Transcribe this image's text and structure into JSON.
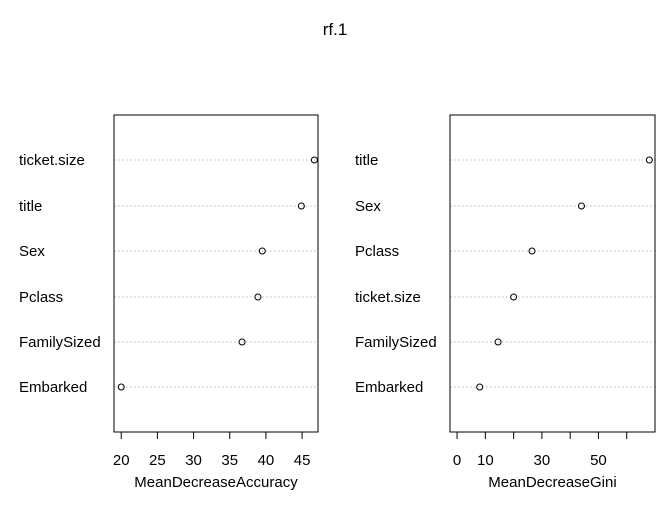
{
  "figure": {
    "title": "rf.1"
  },
  "chart_data": [
    {
      "type": "scatter",
      "plot": "dotchart",
      "xlabel": "MeanDecreaseAccuracy",
      "ylabel": "",
      "xlim": [
        19,
        47.2
      ],
      "xticks": [
        20,
        25,
        30,
        35,
        40,
        45
      ],
      "categories": [
        "ticket.size",
        "title",
        "Sex",
        "Pclass",
        "FamilySized",
        "Embarked"
      ],
      "values": [
        46.7,
        44.9,
        39.5,
        38.9,
        36.7,
        20.0
      ],
      "grid": "dotted horizontal lines"
    },
    {
      "type": "scatter",
      "plot": "dotchart",
      "xlabel": "MeanDecreaseGini",
      "ylabel": "",
      "xlim": [
        -2.5,
        70
      ],
      "xticks": [
        0,
        10,
        20,
        30,
        40,
        50,
        60
      ],
      "xtick_labels": [
        "0",
        "10",
        "",
        "30",
        "",
        "50",
        ""
      ],
      "categories": [
        "title",
        "Sex",
        "Pclass",
        "ticket.size",
        "FamilySized",
        "Embarked"
      ],
      "values": [
        68.0,
        44.0,
        26.5,
        20.0,
        14.5,
        8.0
      ],
      "grid": "dotted horizontal lines"
    }
  ]
}
